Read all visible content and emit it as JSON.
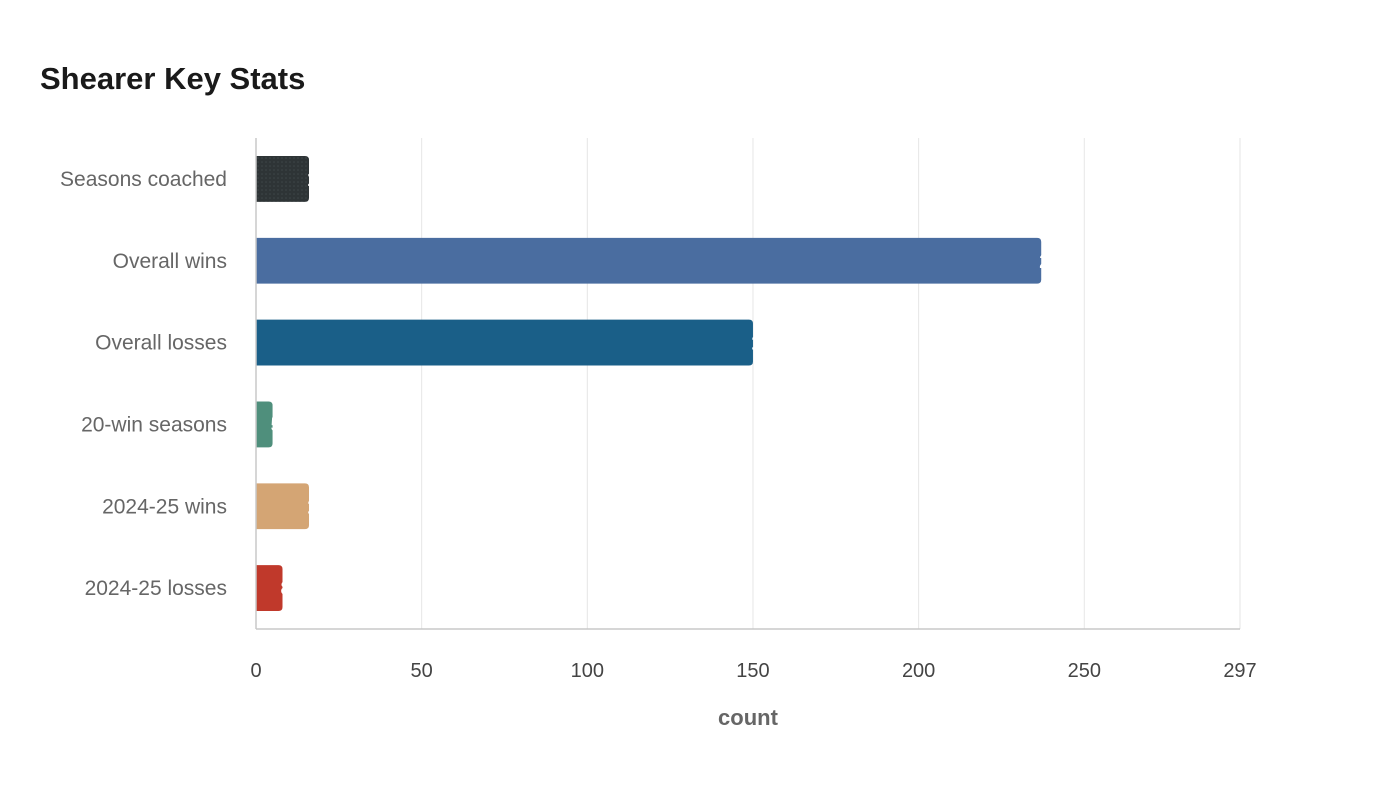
{
  "chart_data": {
    "type": "bar",
    "orientation": "horizontal",
    "title": "Shearer Key Stats",
    "xlabel": "count",
    "ylabel": "",
    "categories": [
      "Seasons coached",
      "Overall wins",
      "Overall losses",
      "20-win seasons",
      "2024-25 wins",
      "2024-25 losses"
    ],
    "values": [
      16,
      237,
      150,
      5,
      16,
      8
    ],
    "colors": [
      "#2e3436",
      "#4a6da0",
      "#1a5f88",
      "#4f8f7c",
      "#d4a574",
      "#c0392b"
    ],
    "xlim": [
      0,
      297
    ],
    "ticks": [
      "0",
      "50",
      "100",
      "150",
      "200",
      "250",
      "297"
    ],
    "grid": true,
    "legend": "none"
  }
}
